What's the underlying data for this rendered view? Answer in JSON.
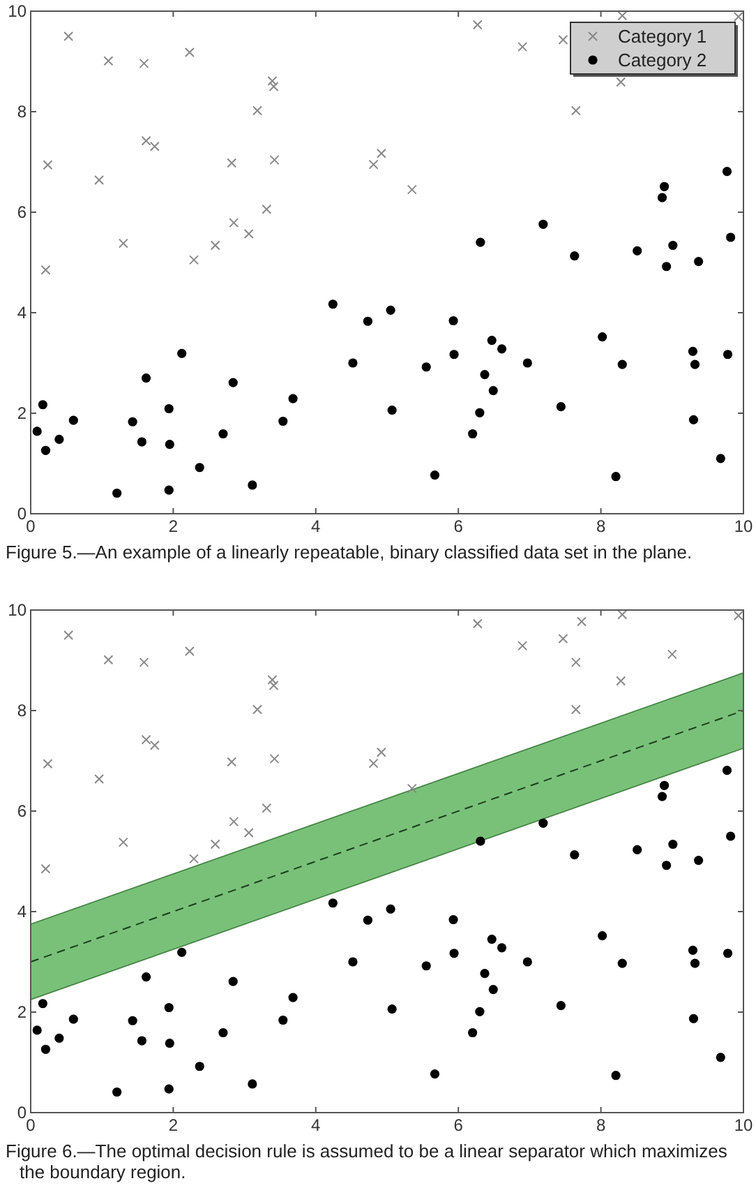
{
  "chart_data": [
    {
      "type": "scatter",
      "xlim": [
        0,
        10
      ],
      "ylim": [
        0,
        10
      ],
      "xticks": [
        0,
        2,
        4,
        6,
        8,
        10
      ],
      "yticks": [
        0,
        2,
        4,
        6,
        8,
        10
      ],
      "grid": false,
      "legend": "top right",
      "annotations": [
        "Figure 5.—An example of a linearly repeatable, binary classified data set in the plane."
      ],
      "series": [
        {
          "name": "Category 1",
          "color": "#888888",
          "marker": "cross",
          "x": [
            0.53,
            1.09,
            1.59,
            2.23,
            3.39,
            3.41,
            3.18,
            1.62,
            1.74,
            0.24,
            0.96,
            2.82,
            3.42,
            4.81,
            4.92,
            5.35,
            3.31,
            2.85,
            3.06,
            1.3,
            2.59,
            2.29,
            0.21,
            6.27,
            6.9,
            7.47,
            8.3,
            8.28,
            7.65,
            9.93
          ],
          "values": [
            9.5,
            9.01,
            8.96,
            9.18,
            8.61,
            8.5,
            8.02,
            7.42,
            7.31,
            6.94,
            6.64,
            6.98,
            7.04,
            6.95,
            7.17,
            6.45,
            6.06,
            5.79,
            5.57,
            5.38,
            5.34,
            5.05,
            4.85,
            9.73,
            9.29,
            9.43,
            9.91,
            8.59,
            8.02,
            9.89
          ]
        },
        {
          "name": "Category 2",
          "color": "#000000",
          "marker": "circle",
          "x": [
            0.09,
            0.17,
            0.21,
            0.4,
            0.6,
            1.21,
            1.43,
            1.56,
            1.62,
            1.94,
            1.95,
            1.94,
            2.12,
            2.37,
            2.7,
            2.84,
            3.11,
            3.54,
            3.68,
            4.24,
            4.52,
            4.73,
            5.05,
            5.07,
            5.55,
            5.67,
            5.93,
            5.94,
            6.2,
            6.3,
            6.31,
            6.37,
            6.47,
            6.49,
            6.61,
            6.97,
            7.19,
            7.44,
            7.63,
            8.02,
            8.21,
            8.3,
            8.51,
            8.86,
            8.89,
            8.92,
            9.01,
            9.29,
            9.32,
            9.3,
            9.37,
            9.68,
            9.77,
            9.78,
            9.82
          ],
          "values": [
            1.64,
            2.17,
            1.26,
            1.48,
            1.86,
            0.41,
            1.83,
            1.43,
            2.7,
            2.09,
            1.38,
            0.47,
            3.19,
            0.92,
            1.59,
            2.61,
            0.57,
            1.84,
            2.29,
            4.17,
            3.0,
            3.83,
            4.05,
            2.06,
            2.92,
            0.77,
            3.84,
            3.17,
            1.59,
            2.01,
            5.4,
            2.77,
            3.45,
            2.45,
            3.28,
            3.0,
            5.76,
            2.13,
            5.13,
            3.52,
            0.74,
            2.97,
            5.23,
            6.29,
            6.51,
            4.92,
            5.34,
            3.23,
            2.97,
            1.87,
            5.02,
            1.1,
            6.81,
            3.17,
            5.5
          ]
        }
      ]
    },
    {
      "type": "scatter",
      "xlim": [
        0,
        10
      ],
      "ylim": [
        0,
        10
      ],
      "xticks": [
        0,
        2,
        4,
        6,
        8,
        10
      ],
      "yticks": [
        0,
        2,
        4,
        6,
        8,
        10
      ],
      "grid": false,
      "annotations": [
        "Figure 6.—The optimal decision rule is assumed to be a linear separator which maximizes the boundary region."
      ],
      "series": [
        {
          "color": "#888888",
          "marker": "cross",
          "x": [
            0.53,
            1.09,
            1.59,
            2.23,
            3.39,
            3.41,
            3.18,
            1.62,
            1.74,
            0.24,
            0.96,
            2.82,
            3.42,
            4.81,
            4.92,
            5.35,
            3.31,
            2.85,
            3.06,
            1.3,
            2.59,
            2.29,
            0.21,
            6.27,
            6.9,
            7.47,
            7.73,
            7.65,
            8.3,
            9.0,
            8.28,
            7.65,
            9.93
          ],
          "values": [
            9.5,
            9.01,
            8.96,
            9.18,
            8.61,
            8.5,
            8.02,
            7.42,
            7.31,
            6.94,
            6.64,
            6.98,
            7.04,
            6.95,
            7.17,
            6.45,
            6.06,
            5.79,
            5.57,
            5.38,
            5.34,
            5.05,
            4.85,
            9.73,
            9.29,
            9.43,
            9.77,
            8.96,
            9.91,
            9.12,
            8.59,
            8.02,
            9.89
          ]
        },
        {
          "color": "#000000",
          "marker": "circle",
          "x": [
            0.09,
            0.17,
            0.21,
            0.4,
            0.6,
            1.21,
            1.43,
            1.56,
            1.62,
            1.94,
            1.95,
            1.94,
            2.12,
            2.37,
            2.7,
            2.84,
            3.11,
            3.54,
            3.68,
            4.24,
            4.52,
            4.73,
            5.05,
            5.07,
            5.55,
            5.67,
            5.93,
            5.94,
            6.2,
            6.3,
            6.31,
            6.37,
            6.47,
            6.49,
            6.61,
            6.97,
            7.19,
            7.44,
            7.63,
            8.02,
            8.21,
            8.3,
            8.51,
            8.86,
            8.89,
            8.92,
            9.01,
            9.29,
            9.32,
            9.3,
            9.37,
            9.68,
            9.77,
            9.78,
            9.82
          ],
          "values": [
            1.64,
            2.17,
            1.26,
            1.48,
            1.86,
            0.41,
            1.83,
            1.43,
            2.7,
            2.09,
            1.38,
            0.47,
            3.19,
            0.92,
            1.59,
            2.61,
            0.57,
            1.84,
            2.29,
            4.17,
            3.0,
            3.83,
            4.05,
            2.06,
            2.92,
            0.77,
            3.84,
            3.17,
            1.59,
            2.01,
            5.4,
            2.77,
            3.45,
            2.45,
            3.28,
            3.0,
            5.76,
            2.13,
            5.13,
            3.52,
            0.74,
            2.97,
            5.23,
            6.29,
            6.51,
            4.92,
            5.34,
            3.23,
            2.97,
            1.87,
            5.02,
            1.1,
            6.81,
            3.17,
            5.5
          ]
        },
        {
          "type": "line",
          "color": "#1e3d1e",
          "line_style": "dashed",
          "marker": "none",
          "x": [
            0,
            10
          ],
          "values": [
            3,
            8
          ],
          "lower": [
            2.25,
            7.25
          ],
          "upper": [
            3.75,
            8.75
          ]
        }
      ]
    }
  ]
}
